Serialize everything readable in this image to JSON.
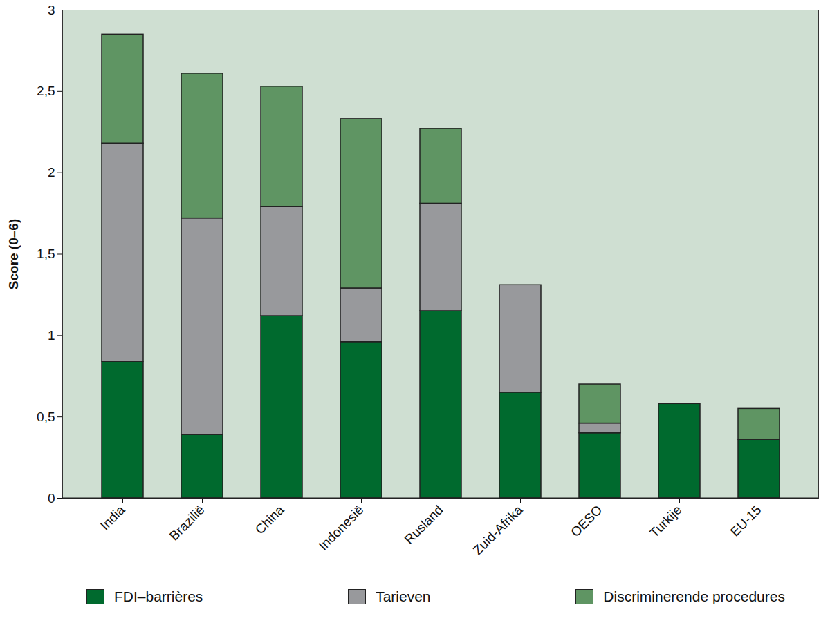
{
  "chart_data": {
    "type": "bar",
    "stacked": true,
    "y_label": "Score (0–6)",
    "categories": [
      "India",
      "Brazilië",
      "China",
      "Indonesië",
      "Rusland",
      "Zuid-Afrika",
      "OESO",
      "Turkije",
      "EU-15"
    ],
    "series": [
      {
        "name": "FDI–barrières",
        "color": "#006a2e",
        "values": [
          0.84,
          0.39,
          1.12,
          0.96,
          1.15,
          0.65,
          0.4,
          0.58,
          0.36
        ]
      },
      {
        "name": "Tarieven",
        "color": "#98999c",
        "values": [
          1.34,
          1.33,
          0.67,
          0.33,
          0.66,
          0.66,
          0.06,
          0,
          0
        ]
      },
      {
        "name": "Discriminerende procedures",
        "color": "#5f9563",
        "values": [
          0.67,
          0.89,
          0.74,
          1.04,
          0.46,
          0,
          0.24,
          0,
          0.19
        ]
      }
    ],
    "ylim": [
      0,
      3
    ],
    "yticks": [
      0,
      {
        "value": 0.5,
        "label": "0,5"
      },
      1,
      {
        "value": 1.5,
        "label": "1,5"
      },
      2,
      {
        "value": 2.5,
        "label": "2,5"
      },
      3
    ],
    "grid": false,
    "legend": "bottom"
  }
}
